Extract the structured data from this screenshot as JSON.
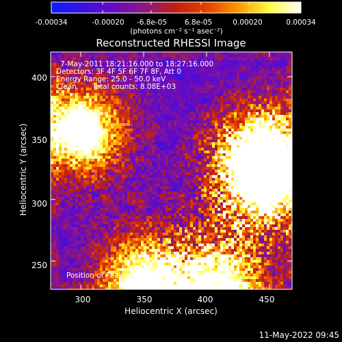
{
  "colorbar": {
    "tick_labels": [
      "-0.00034",
      "-0.00020",
      "-6.8e-05",
      "6.8e-05",
      "0.00020",
      "0.00034"
    ],
    "tick_values": [
      -0.00034,
      -0.0002,
      -6.8e-05,
      6.8e-05,
      0.0002,
      0.00034
    ],
    "range": [
      -0.00034,
      0.00034
    ],
    "units": "(photons cm⁻² s⁻¹ asec⁻²)",
    "colormap": [
      "#0a1cff",
      "#3a10e0",
      "#6a0ac0",
      "#8a1a80",
      "#c02010",
      "#e84000",
      "#ff9a00",
      "#ffff40",
      "#ffffff"
    ]
  },
  "annotations": {
    "time_range": "7-May-2011 18:21:16.000 to 18:27:16.000",
    "detectors": "Detectors: 3F 4F 5F 6F 7F 8F, Att 0",
    "energy": "Energy Range: 25.0 - 50.0 keV",
    "clean": "Clean",
    "total_counts": "Total counts: 8.08E+03",
    "peak": "Position of Peak = [299,356]"
  },
  "footer": {
    "timestamp": "11-May-2022 09:45"
  },
  "chart_data": {
    "type": "heatmap",
    "title": "Reconstructed RHESSI Image",
    "xlabel": "Heliocentric X (arcsec)",
    "ylabel": "Heliocentric Y (arcsec)",
    "xlim": [
      276,
      468
    ],
    "ylim": [
      227,
      420
    ],
    "x_ticks": [
      300,
      350,
      400,
      450
    ],
    "y_ticks": [
      250,
      300,
      350,
      400
    ],
    "x_tick_labels": [
      "300",
      "350",
      "400",
      "450"
    ],
    "y_tick_labels": [
      "250",
      "300",
      "350",
      "400"
    ],
    "peak_position": [
      299,
      356
    ],
    "bright_sources": [
      {
        "x": 299,
        "y": 356,
        "level": 0.9
      },
      {
        "x": 447,
        "y": 339,
        "level": 0.85
      },
      {
        "x": 445,
        "y": 312,
        "level": 0.75
      },
      {
        "x": 350,
        "y": 235,
        "level": 0.8
      },
      {
        "x": 410,
        "y": 232,
        "level": 0.75
      }
    ]
  }
}
